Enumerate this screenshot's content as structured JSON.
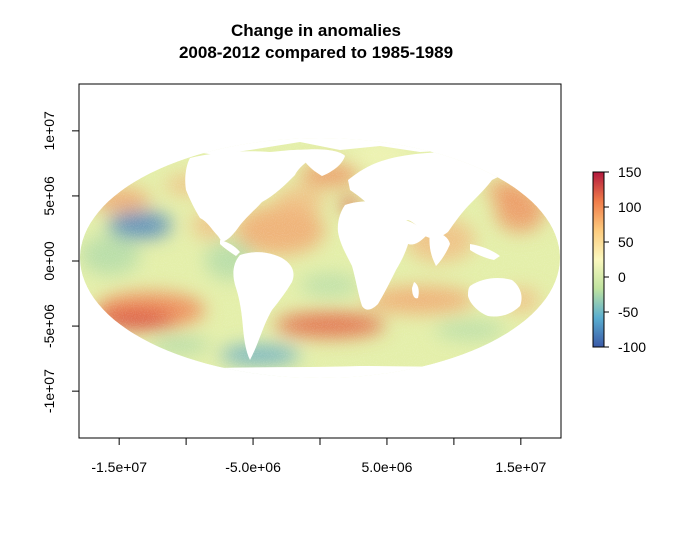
{
  "title_line1": "Change in anomalies",
  "title_line2": "2008-2012 compared to 1985-1989",
  "x_axis": {
    "ticks": [
      -15000000,
      -10000000,
      -5000000,
      0,
      5000000,
      10000000,
      15000000
    ],
    "labels": [
      "-1.5e+07",
      "",
      "-5.0e+06",
      "",
      "5.0e+06",
      "",
      "1.5e+07"
    ],
    "range": [
      -18000000,
      18000000
    ]
  },
  "y_axis": {
    "ticks": [
      -10000000,
      -5000000,
      0,
      5000000,
      10000000
    ],
    "labels": [
      "-1e+07",
      "-5e+06",
      "0e+00",
      "5e+06",
      "1e+07"
    ],
    "range": [
      -13600000,
      13600000
    ]
  },
  "projection": "Mollweide",
  "legend": {
    "placement": "right",
    "ticks": [
      150,
      100,
      50,
      0,
      -50,
      -100
    ],
    "labels": [
      "150",
      "100",
      "50",
      "0",
      "-50",
      "-100"
    ],
    "range": [
      -100,
      150
    ],
    "colors": [
      "#3b5aa8",
      "#5aaed0",
      "#bfe3a0",
      "#fbf8be",
      "#fdcb7e",
      "#f07c4a",
      "#b2183d"
    ]
  },
  "colors": {
    "land": "#ffffff",
    "ocean_base": "#e4efa9",
    "warm": "#f3a06a",
    "hot": "#e1533e",
    "cool": "#a8d7a8",
    "cold": "#4f90bf"
  }
}
